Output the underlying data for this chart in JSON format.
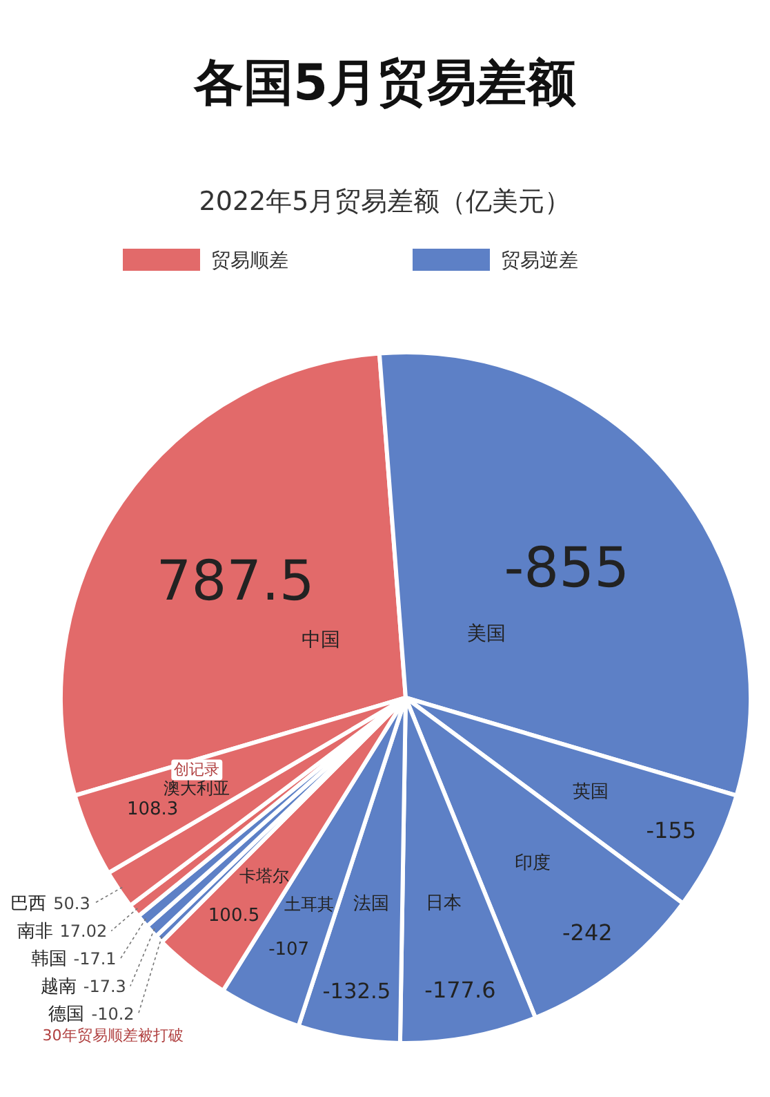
{
  "chart_data": {
    "type": "other",
    "title": "各国5月贸易差额",
    "subtitle": "2022年5月贸易差额（亿美元）",
    "categories": [
      "中国",
      "美国",
      "英国",
      "印度",
      "日本",
      "法国",
      "土耳其",
      "卡塔尔",
      "德国",
      "越南",
      "韩国",
      "南非",
      "巴西",
      "澳大利亚"
    ],
    "series": [
      {
        "name": "贸易顺差",
        "color": "#e26a6a",
        "values": [
          787.5,
          null,
          null,
          null,
          null,
          null,
          null,
          100.5,
          null,
          null,
          null,
          17.02,
          50.3,
          108.3
        ],
        "value_labels": [
          "787.5",
          null,
          null,
          null,
          null,
          null,
          null,
          "100.5",
          null,
          null,
          null,
          "17.02",
          "50.3",
          "108.3"
        ]
      },
      {
        "name": "贸易逆差",
        "color": "#5d80c6",
        "values": [
          null,
          -855,
          -155,
          -242,
          -177.6,
          -132.5,
          -107,
          null,
          -10.2,
          -17.3,
          -17.1,
          null,
          null,
          null
        ],
        "value_labels": [
          null,
          "-855",
          "-155",
          "-242",
          "-177.6",
          "-132.5",
          "-107",
          null,
          "-10.2",
          "-17.3",
          "-17.1",
          null,
          null,
          null
        ]
      }
    ],
    "legend": "top",
    "annotations": [
      {
        "text": "创记录",
        "x": "澳大利亚"
      },
      {
        "text": "30年贸易顺差被打破",
        "x": "德国"
      }
    ]
  }
}
